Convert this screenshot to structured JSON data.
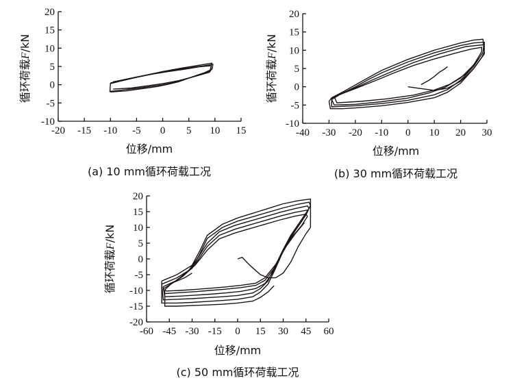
{
  "chart_data": [
    {
      "type": "line",
      "panel_id": "a",
      "caption": "(a) 10 mm循环荷载工况",
      "xlabel": "位移/mm",
      "ylabel_prefix": "循环荷载",
      "ylabel_var": "F",
      "ylabel_unit": "/kN",
      "xlim": [
        -20,
        15
      ],
      "ylim": [
        -10,
        20
      ],
      "xticks": [
        -20,
        -15,
        -10,
        -5,
        0,
        5,
        10,
        15
      ],
      "yticks": [
        -10,
        -5,
        0,
        5,
        10,
        15,
        20
      ],
      "series": [
        {
          "x": [
            -10,
            -8,
            -5,
            -2,
            0,
            2,
            4,
            6,
            8,
            9.5
          ],
          "y": [
            -1.8,
            -1.5,
            -1.0,
            -0.4,
            0.0,
            0.6,
            1.4,
            2.3,
            3.3,
            4.3
          ]
        },
        {
          "x": [
            9.5,
            9.6,
            8,
            6,
            4,
            2,
            0,
            -2,
            -5,
            -8,
            -10
          ],
          "y": [
            4.3,
            5.6,
            5.2,
            4.8,
            4.4,
            3.9,
            3.4,
            2.9,
            2.1,
            1.2,
            0.5
          ]
        },
        {
          "x": [
            -10,
            -10.1,
            -9.8
          ],
          "y": [
            0.5,
            -1.9,
            -1.8
          ]
        },
        {
          "x": [
            -10,
            -7,
            -4,
            -1,
            1,
            3,
            5,
            7,
            9.2
          ],
          "y": [
            -2.0,
            -1.7,
            -1.1,
            -0.5,
            0.1,
            0.8,
            1.8,
            2.8,
            3.8
          ]
        },
        {
          "x": [
            9.2,
            9.3,
            7,
            4,
            1,
            -2,
            -5,
            -8,
            -10
          ],
          "y": [
            3.8,
            5.2,
            4.9,
            4.2,
            3.6,
            2.9,
            2.0,
            1.0,
            0.3
          ]
        },
        {
          "x": [
            -9.5,
            -6,
            -3,
            0,
            3,
            6,
            9
          ],
          "y": [
            -1.2,
            -0.9,
            -0.3,
            0.3,
            1.1,
            2.2,
            3.4
          ]
        },
        {
          "x": [
            9,
            9.4,
            6,
            3,
            0,
            -3,
            -6,
            -9.5
          ],
          "y": [
            3.4,
            5.9,
            5.1,
            4.4,
            3.6,
            2.7,
            1.8,
            0.8
          ]
        }
      ]
    },
    {
      "type": "line",
      "panel_id": "b",
      "caption": "(b) 30 mm循环荷载工况",
      "xlabel": "位移/mm",
      "ylabel_prefix": "循环荷载",
      "ylabel_var": "F",
      "ylabel_unit": "/kN",
      "xlim": [
        -40,
        30
      ],
      "ylim": [
        -10,
        20
      ],
      "xticks": [
        -40,
        -30,
        -20,
        -10,
        0,
        10,
        20,
        30
      ],
      "yticks": [
        -10,
        -5,
        0,
        5,
        10,
        15,
        20
      ],
      "series": [
        {
          "x": [
            0,
            3,
            6,
            10,
            15,
            20,
            25,
            28,
            29
          ],
          "y": [
            0,
            -0.3,
            -0.6,
            -1.0,
            -0.4,
            1.5,
            5.0,
            8.0,
            9.5
          ]
        },
        {
          "x": [
            29,
            28.5,
            25,
            20,
            10,
            0,
            -10,
            -15,
            -20,
            -25,
            -29,
            -30
          ],
          "y": [
            9.5,
            13.0,
            12.8,
            12.0,
            10.0,
            7.5,
            4.5,
            2.5,
            0.5,
            -1.5,
            -3.0,
            -4.0
          ]
        },
        {
          "x": [
            -30,
            -29.5,
            -25,
            -20,
            -10,
            0,
            10,
            15,
            20,
            25,
            29
          ],
          "y": [
            -4.0,
            -6.0,
            -6.0,
            -5.8,
            -5.2,
            -4.3,
            -3.0,
            -1.5,
            1.0,
            5.0,
            9.0
          ]
        },
        {
          "x": [
            29,
            29,
            25,
            20,
            10,
            0,
            -10,
            -15,
            -20,
            -25,
            -29
          ],
          "y": [
            9.0,
            12.2,
            12.0,
            11.3,
            9.3,
            6.8,
            3.8,
            2.0,
            0.0,
            -1.8,
            -3.3
          ]
        },
        {
          "x": [
            -29,
            -29,
            -20,
            -10,
            0,
            10,
            15,
            20,
            25,
            28.5
          ],
          "y": [
            -3.3,
            -5.5,
            -5.2,
            -4.6,
            -3.7,
            -2.2,
            -0.8,
            1.8,
            5.6,
            9.4
          ]
        },
        {
          "x": [
            28.5,
            28.8,
            22,
            12,
            2,
            -8,
            -14,
            -20,
            -26,
            -29
          ],
          "y": [
            9.4,
            11.5,
            11.0,
            9.0,
            6.6,
            3.6,
            1.7,
            -0.3,
            -2.2,
            -3.5
          ]
        },
        {
          "x": [
            -29,
            -28,
            -20,
            -10,
            0,
            8,
            14,
            20,
            25,
            28
          ],
          "y": [
            -3.5,
            -5.0,
            -4.8,
            -4.1,
            -3.1,
            -1.7,
            -0.2,
            2.4,
            6.0,
            9.6
          ]
        },
        {
          "x": [
            28,
            28,
            24,
            18,
            10,
            2,
            -6,
            -12,
            -20,
            -28
          ],
          "y": [
            9.6,
            10.8,
            10.3,
            9.2,
            7.6,
            5.8,
            3.6,
            1.8,
            -0.5,
            -2.7
          ]
        },
        {
          "x": [
            -28,
            -27,
            -18,
            -8,
            2,
            10,
            16,
            22,
            27
          ],
          "y": [
            -2.7,
            -4.4,
            -4.0,
            -3.3,
            -2.3,
            -0.9,
            0.7,
            3.5,
            7.8
          ]
        },
        {
          "x": [
            5,
            8,
            10,
            12,
            14,
            15
          ],
          "y": [
            0.6,
            1.8,
            2.8,
            4.0,
            4.9,
            5.5
          ]
        }
      ]
    },
    {
      "type": "line",
      "panel_id": "c",
      "caption": "(c) 50 mm循环荷载工况",
      "xlabel": "位移/mm",
      "ylabel_prefix": "循环荷载",
      "ylabel_var": "F",
      "ylabel_unit": "/kN",
      "xlim": [
        -60,
        60
      ],
      "ylim": [
        -20,
        20
      ],
      "xticks": [
        -60,
        -45,
        -30,
        -15,
        0,
        15,
        30,
        45,
        60
      ],
      "yticks": [
        -20,
        -15,
        -10,
        -5,
        0,
        5,
        10,
        15,
        20
      ],
      "series": [
        {
          "x": [
            0,
            3,
            8,
            15,
            20,
            25,
            30,
            35,
            40,
            45,
            48
          ],
          "y": [
            0,
            0.5,
            -2.0,
            -5.0,
            -6.0,
            -6.0,
            -4.5,
            -1.0,
            4.0,
            8.0,
            10.0
          ]
        },
        {
          "x": [
            48,
            48,
            40,
            30,
            20,
            10,
            0,
            -10,
            -20,
            -25,
            -30,
            -40,
            -50
          ],
          "y": [
            10.0,
            19.0,
            18.5,
            17.5,
            16.0,
            14.5,
            13.0,
            11.0,
            7.5,
            2.5,
            -2.0,
            -5.0,
            -7.0
          ]
        },
        {
          "x": [
            -50,
            -50,
            -40,
            -30,
            -20,
            -10,
            0,
            10,
            15,
            20,
            25,
            30,
            35,
            40,
            45,
            48
          ],
          "y": [
            -7.0,
            -14.0,
            -14.0,
            -13.8,
            -13.5,
            -13.2,
            -12.8,
            -12.0,
            -10.5,
            -8.0,
            -3.0,
            2.5,
            7.0,
            10.5,
            14.0,
            17.0
          ]
        },
        {
          "x": [
            48,
            47,
            40,
            30,
            20,
            10,
            0,
            -10,
            -20,
            -25,
            -30,
            -40,
            -50
          ],
          "y": [
            17.0,
            18.0,
            17.4,
            16.2,
            14.8,
            13.4,
            12.0,
            10.0,
            6.5,
            1.5,
            -3.0,
            -6.0,
            -8.0
          ]
        },
        {
          "x": [
            -50,
            -49,
            -40,
            -30,
            -20,
            -10,
            0,
            10,
            15,
            20,
            25,
            30,
            35,
            40,
            47
          ],
          "y": [
            -8.0,
            -13.0,
            -12.8,
            -12.6,
            -12.3,
            -12.0,
            -11.6,
            -10.8,
            -9.4,
            -7.0,
            -2.0,
            3.0,
            7.5,
            11.0,
            16.0
          ]
        },
        {
          "x": [
            47,
            46,
            38,
            28,
            18,
            8,
            -2,
            -12,
            -20,
            -26,
            -32,
            -40,
            -49
          ],
          "y": [
            16.0,
            16.8,
            16.0,
            14.8,
            13.4,
            12.0,
            10.6,
            8.6,
            5.0,
            0.5,
            -3.5,
            -6.8,
            -8.8
          ]
        },
        {
          "x": [
            -49,
            -48,
            -38,
            -28,
            -18,
            -8,
            2,
            12,
            18,
            23,
            28,
            33,
            38,
            43,
            46
          ],
          "y": [
            -8.8,
            -12.0,
            -11.8,
            -11.5,
            -11.2,
            -10.8,
            -10.3,
            -9.4,
            -7.8,
            -4.5,
            0.5,
            5.0,
            9.0,
            12.5,
            15.0
          ]
        },
        {
          "x": [
            46,
            46,
            38,
            28,
            18,
            8,
            -2,
            -12,
            -20,
            -27,
            -34,
            -42,
            -49
          ],
          "y": [
            15.0,
            15.5,
            14.8,
            13.6,
            12.2,
            10.8,
            9.4,
            7.5,
            4.0,
            -1.0,
            -4.5,
            -7.4,
            -9.5
          ]
        },
        {
          "x": [
            -49,
            -48,
            -38,
            -28,
            -18,
            -8,
            2,
            12,
            18,
            24,
            30,
            36,
            42,
            46
          ],
          "y": [
            -9.5,
            -11.0,
            -10.7,
            -10.4,
            -10.0,
            -9.6,
            -9.1,
            -8.4,
            -6.8,
            -3.0,
            2.5,
            7.0,
            10.5,
            13.5
          ]
        },
        {
          "x": [
            46,
            45,
            38,
            28,
            18,
            8,
            -2,
            -12,
            -20,
            -28,
            -36,
            -44,
            -48
          ],
          "y": [
            13.5,
            14.2,
            13.6,
            12.4,
            11.0,
            9.6,
            8.2,
            6.4,
            2.8,
            -2.0,
            -5.5,
            -8.0,
            -9.8
          ]
        },
        {
          "x": [
            -48,
            -47,
            -38,
            -28,
            -18,
            -8,
            2,
            12,
            18,
            25,
            32,
            38,
            44
          ],
          "y": [
            -9.8,
            -10.2,
            -10.0,
            -9.7,
            -9.3,
            -8.9,
            -8.4,
            -7.7,
            -6.0,
            -1.8,
            4.0,
            8.0,
            11.5
          ]
        },
        {
          "x": [
            -48,
            -48,
            -40,
            -30,
            -20,
            -10,
            0,
            10,
            15,
            20,
            24
          ],
          "y": [
            -10.0,
            -15.0,
            -15.0,
            -14.8,
            -14.6,
            -14.4,
            -14.0,
            -13.4,
            -12.2,
            -10.5,
            -8.5
          ]
        },
        {
          "x": [
            -45,
            -40,
            -35,
            -30
          ],
          "y": [
            -8.0,
            -7.0,
            -6.0,
            -4.5
          ]
        }
      ]
    }
  ]
}
